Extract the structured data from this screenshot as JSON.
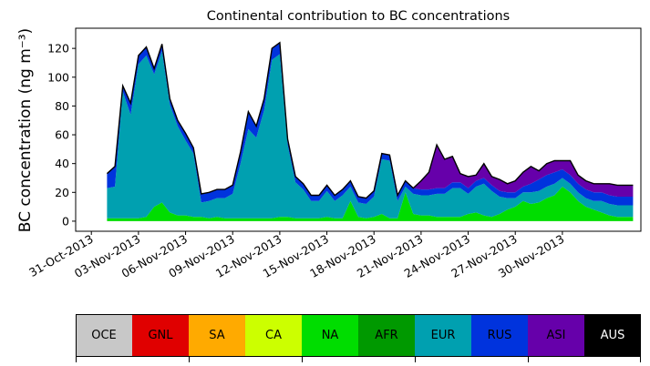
{
  "chart_data": {
    "type": "area",
    "title": "Continental contribution to BC concentrations",
    "xlabel": "",
    "ylabel": "BC concentration (ng m⁻³)",
    "ylim": [
      -7,
      134
    ],
    "yticks": [
      0,
      20,
      40,
      60,
      80,
      100,
      120
    ],
    "x_start": "2013-10-30",
    "x_end": "2013-12-05",
    "xtick_labels": [
      "31-Oct-2013",
      "03-Nov-2013",
      "06-Nov-2013",
      "09-Nov-2013",
      "12-Nov-2013",
      "15-Nov-2013",
      "18-Nov-2013",
      "21-Nov-2013",
      "24-Nov-2013",
      "27-Nov-2013",
      "30-Nov-2013"
    ],
    "xtick_dates": [
      "2013-10-31",
      "2013-11-03",
      "2013-11-06",
      "2013-11-09",
      "2013-11-12",
      "2013-11-15",
      "2013-11-18",
      "2013-11-21",
      "2013-11-24",
      "2013-11-27",
      "2013-11-30"
    ],
    "stacked": true,
    "dates": [
      "2013-11-01",
      "2013-11-01T12",
      "2013-11-02",
      "2013-11-02T12",
      "2013-11-03",
      "2013-11-03T12",
      "2013-11-04",
      "2013-11-04T12",
      "2013-11-05",
      "2013-11-05T12",
      "2013-11-06",
      "2013-11-06T12",
      "2013-11-07",
      "2013-11-07T12",
      "2013-11-08",
      "2013-11-08T12",
      "2013-11-09",
      "2013-11-09T12",
      "2013-11-10",
      "2013-11-10T12",
      "2013-11-11",
      "2013-11-11T12",
      "2013-11-12",
      "2013-11-12T12",
      "2013-11-13",
      "2013-11-13T12",
      "2013-11-14",
      "2013-11-14T12",
      "2013-11-15",
      "2013-11-15T12",
      "2013-11-16",
      "2013-11-16T12",
      "2013-11-17",
      "2013-11-17T12",
      "2013-11-18",
      "2013-11-18T12",
      "2013-11-19",
      "2013-11-19T12",
      "2013-11-20",
      "2013-11-20T12",
      "2013-11-21",
      "2013-11-21T12",
      "2013-11-22",
      "2013-11-22T12",
      "2013-11-23",
      "2013-11-23T12",
      "2013-11-24",
      "2013-11-24T12",
      "2013-11-25",
      "2013-11-25T12",
      "2013-11-26",
      "2013-11-26T12",
      "2013-11-27",
      "2013-11-27T12",
      "2013-11-28",
      "2013-11-28T12",
      "2013-11-29",
      "2013-11-29T12",
      "2013-11-30",
      "2013-11-30T12",
      "2013-12-01",
      "2013-12-01T12",
      "2013-12-02",
      "2013-12-02T12",
      "2013-12-03",
      "2013-12-03T12",
      "2013-12-04",
      "2013-12-04T12"
    ],
    "series": [
      {
        "name": "OCE",
        "color": "#c8c8c8",
        "values": [
          0,
          0,
          0,
          0,
          0,
          0,
          0,
          0,
          0,
          0,
          0,
          0,
          0,
          0,
          0,
          0,
          0,
          0,
          0,
          0,
          0,
          0,
          0,
          0,
          0,
          0,
          0,
          0,
          0,
          0,
          0,
          0,
          0,
          0,
          0,
          0,
          0,
          0,
          0,
          0,
          0,
          0,
          0,
          0,
          0,
          0,
          0,
          0,
          0,
          0,
          0,
          0,
          0,
          0,
          0,
          0,
          0,
          0,
          0,
          0,
          0,
          0,
          0,
          0,
          0,
          0,
          0,
          0
        ]
      },
      {
        "name": "GNL",
        "color": "#e00000",
        "values": [
          0,
          0,
          0,
          0,
          0,
          0,
          0,
          0,
          0,
          0,
          0,
          0,
          0,
          0,
          0,
          0,
          0,
          0,
          0,
          0,
          0,
          0,
          0,
          0,
          0,
          0,
          0,
          0,
          0,
          0,
          0,
          0,
          0,
          0,
          0,
          0,
          0,
          0,
          0,
          0,
          0,
          0,
          0,
          0,
          0,
          0,
          0,
          0,
          0,
          0,
          0,
          0,
          0,
          0,
          0,
          0,
          0,
          0,
          0,
          0,
          0,
          0,
          0,
          0,
          0,
          0,
          0,
          0
        ]
      },
      {
        "name": "SA",
        "color": "#ffaa00",
        "values": [
          0,
          0,
          0,
          0,
          0,
          0,
          0,
          0,
          0,
          0,
          0,
          0,
          0,
          0,
          0,
          0,
          0,
          0,
          0,
          0,
          0,
          0,
          0,
          0,
          0,
          0,
          0,
          0,
          0,
          0,
          0,
          0,
          0,
          0,
          0,
          0,
          0,
          0,
          0,
          0,
          0,
          0,
          0,
          0,
          0,
          0,
          0,
          0,
          0,
          0,
          0,
          0,
          0,
          0,
          0,
          0,
          0,
          0,
          0,
          0,
          0,
          0,
          0,
          0,
          0,
          0,
          0,
          0
        ]
      },
      {
        "name": "CA",
        "color": "#ccff00",
        "values": [
          0,
          0,
          0,
          0,
          0,
          0,
          0,
          0,
          0,
          0,
          0,
          0,
          0,
          0,
          0,
          0,
          0,
          0,
          0,
          0,
          0,
          0,
          0,
          0,
          0,
          0,
          0,
          0,
          0,
          0,
          0,
          0,
          0,
          0,
          0,
          0,
          0,
          0,
          0,
          0,
          0,
          0,
          0,
          0,
          0,
          0,
          0,
          0,
          0,
          0,
          0,
          0,
          0,
          0,
          0,
          0,
          0,
          0,
          0,
          0,
          0,
          0,
          0,
          0,
          0,
          0,
          0,
          0
        ]
      },
      {
        "name": "NA",
        "color": "#00dd00",
        "values": [
          2,
          2,
          2,
          2,
          2,
          3,
          10,
          13,
          6,
          4,
          4,
          3,
          3,
          2,
          3,
          2,
          2,
          2,
          2,
          2,
          2,
          2,
          3,
          3,
          2,
          2,
          2,
          2,
          3,
          2,
          2,
          14,
          3,
          2,
          3,
          5,
          2,
          2,
          20,
          5,
          4,
          4,
          3,
          3,
          3,
          3,
          5,
          6,
          4,
          3,
          5,
          8,
          10,
          14,
          12,
          13,
          16,
          18,
          24,
          20,
          14,
          10,
          8,
          6,
          4,
          3,
          3,
          3
        ]
      },
      {
        "name": "AFR",
        "color": "#009900",
        "values": [
          0,
          0,
          0,
          0,
          0,
          0,
          0,
          0,
          0,
          0,
          0,
          0,
          0,
          0,
          0,
          0,
          0,
          0,
          0,
          0,
          0,
          0,
          0,
          0,
          0,
          0,
          0,
          0,
          0,
          0,
          0,
          0,
          0,
          0,
          0,
          0,
          0,
          0,
          0,
          0,
          0,
          0,
          0,
          0,
          0,
          0,
          0,
          0,
          0,
          0,
          0,
          0,
          0,
          0,
          0,
          0,
          0,
          0,
          0,
          0,
          0,
          0,
          0,
          0,
          0,
          0,
          0,
          0
        ]
      },
      {
        "name": "EUR",
        "color": "#00a0b0",
        "values": [
          21,
          22,
          88,
          72,
          107,
          112,
          92,
          105,
          75,
          62,
          52,
          44,
          10,
          12,
          13,
          14,
          17,
          38,
          62,
          56,
          75,
          110,
          113,
          50,
          25,
          20,
          12,
          12,
          18,
          12,
          16,
          10,
          10,
          10,
          14,
          38,
          40,
          12,
          4,
          14,
          14,
          14,
          16,
          16,
          20,
          20,
          14,
          18,
          22,
          18,
          12,
          8,
          6,
          6,
          8,
          8,
          8,
          8,
          6,
          6,
          6,
          6,
          6,
          8,
          8,
          8,
          8,
          8
        ]
      },
      {
        "name": "RUS",
        "color": "#0033dd",
        "values": [
          10,
          14,
          4,
          8,
          6,
          6,
          4,
          5,
          4,
          4,
          5,
          4,
          6,
          6,
          6,
          6,
          6,
          8,
          12,
          8,
          8,
          8,
          8,
          4,
          4,
          4,
          4,
          4,
          4,
          4,
          4,
          4,
          4,
          4,
          4,
          4,
          4,
          4,
          4,
          4,
          4,
          4,
          4,
          4,
          4,
          4,
          4,
          4,
          4,
          4,
          4,
          4,
          4,
          4,
          6,
          8,
          8,
          8,
          6,
          6,
          6,
          6,
          6,
          6,
          6,
          6,
          6,
          6
        ]
      },
      {
        "name": "ASI",
        "color": "#6600aa",
        "values": [
          0,
          0,
          0,
          0,
          0,
          0,
          0,
          0,
          0,
          0,
          0,
          0,
          0,
          0,
          0,
          0,
          0,
          0,
          0,
          0,
          0,
          0,
          0,
          0,
          0,
          0,
          0,
          0,
          0,
          0,
          0,
          0,
          0,
          0,
          0,
          0,
          0,
          0,
          0,
          0,
          6,
          12,
          30,
          20,
          18,
          6,
          8,
          4,
          10,
          6,
          8,
          6,
          8,
          10,
          12,
          6,
          8,
          8,
          6,
          10,
          6,
          6,
          6,
          6,
          8,
          8,
          8,
          8
        ]
      },
      {
        "name": "AUS",
        "color": "#000000",
        "values": [
          0,
          0,
          0,
          0,
          0,
          0,
          0,
          0,
          0,
          0,
          0,
          0,
          0,
          0,
          0,
          0,
          0,
          0,
          0,
          0,
          0,
          0,
          0,
          0,
          0,
          0,
          0,
          0,
          0,
          0,
          0,
          0,
          0,
          0,
          0,
          0,
          0,
          0,
          0,
          0,
          0,
          0,
          0,
          0,
          0,
          0,
          0,
          0,
          0,
          0,
          0,
          0,
          0,
          0,
          0,
          0,
          0,
          0,
          0,
          0,
          0,
          0,
          0,
          0,
          0,
          0,
          0,
          0
        ]
      }
    ],
    "total_line_color": "#000000"
  },
  "legend": {
    "items": [
      {
        "label": "OCE",
        "color": "#c8c8c8",
        "text_color": "#000000"
      },
      {
        "label": "GNL",
        "color": "#e00000",
        "text_color": "#000000"
      },
      {
        "label": "SA",
        "color": "#ffaa00",
        "text_color": "#000000"
      },
      {
        "label": "CA",
        "color": "#ccff00",
        "text_color": "#000000"
      },
      {
        "label": "NA",
        "color": "#00dd00",
        "text_color": "#000000"
      },
      {
        "label": "AFR",
        "color": "#009900",
        "text_color": "#000000"
      },
      {
        "label": "EUR",
        "color": "#00a0b0",
        "text_color": "#000000"
      },
      {
        "label": "RUS",
        "color": "#0033dd",
        "text_color": "#000000"
      },
      {
        "label": "ASI",
        "color": "#6600aa",
        "text_color": "#000000"
      },
      {
        "label": "AUS",
        "color": "#000000",
        "text_color": "#ffffff"
      }
    ]
  }
}
